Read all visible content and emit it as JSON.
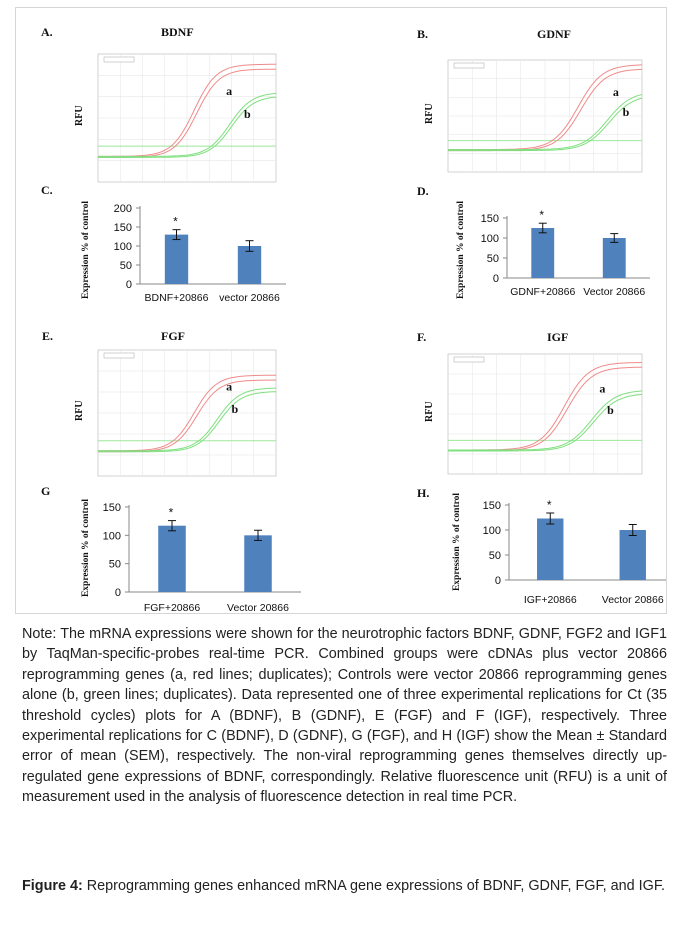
{
  "panels_pcr": [
    {
      "letter": "A.",
      "title": "BDNF",
      "ylabel": "RFU",
      "curve_a": "a",
      "curve_b": "b"
    },
    {
      "letter": "B.",
      "title": "GDNF",
      "ylabel": "RFU",
      "curve_a": "a",
      "curve_b": "b"
    },
    {
      "letter": "E.",
      "title": "FGF",
      "ylabel": "RFU",
      "curve_a": "a",
      "curve_b": "b"
    },
    {
      "letter": "F.",
      "title": "IGF",
      "ylabel": "RFU",
      "curve_a": "a",
      "curve_b": "b"
    }
  ],
  "chart_data": [
    {
      "type": "bar",
      "panel": "C.",
      "categories": [
        "BDNF+20866",
        "vector 20866"
      ],
      "values": [
        130,
        100
      ],
      "errors": [
        13,
        14
      ],
      "ylabel": "Expression % of control",
      "ylim": [
        0,
        200
      ],
      "yticks": [
        0,
        50,
        100,
        150,
        200
      ],
      "annotation": "*",
      "bar_color": "#4f81bd"
    },
    {
      "type": "bar",
      "panel": "D.",
      "categories": [
        "GDNF+20866",
        "Vector 20866"
      ],
      "values": [
        125,
        100
      ],
      "errors": [
        12,
        11
      ],
      "ylabel": "Expression % of control",
      "ylim": [
        0,
        150
      ],
      "yticks": [
        0,
        50,
        100,
        150
      ],
      "annotation": "*",
      "bar_color": "#4f81bd"
    },
    {
      "type": "bar",
      "panel": "G",
      "categories": [
        "FGF+20866",
        "Vector 20866"
      ],
      "values": [
        117,
        100
      ],
      "errors": [
        9,
        9
      ],
      "ylabel": "Expression % of control",
      "ylim": [
        0,
        150
      ],
      "yticks": [
        0,
        50,
        100,
        150
      ],
      "annotation": "*",
      "bar_color": "#4f81bd"
    },
    {
      "type": "bar",
      "panel": "H.",
      "categories": [
        "IGF+20866",
        "Vector 20866"
      ],
      "values": [
        123,
        100
      ],
      "errors": [
        11,
        11
      ],
      "ylabel": "Expression % of control",
      "ylim": [
        0,
        150
      ],
      "yticks": [
        0,
        50,
        100,
        150
      ],
      "annotation": "*",
      "bar_color": "#4f81bd"
    }
  ],
  "note": "Note: The mRNA expressions were shown for the neurotrophic factors BDNF, GDNF, FGF2 and IGF1 by TaqMan-specific-probes real-time PCR. Combined groups were cDNAs plus vector 20866 reprogramming genes (a, red lines; duplicates); Controls were vector 20866 reprogramming genes alone (b, green lines; duplicates). Data represented one of three experimental replications for Ct (35 threshold cycles) plots for A (BDNF), B (GDNF), E (FGF) and F (IGF), respectively. Three experimental replications for C (BDNF), D (GDNF), G (FGF), and H (IGF) show the Mean ± Standard error of mean (SEM), respectively. The non-viral reprogramming genes themselves directly up-regulated gene expressions of BDNF, correspondingly. Relative fluorescence unit (RFU) is a unit of measurement used in the analysis of fluorescence detection in real time PCR.",
  "caption": {
    "label": "Figure 4:",
    "text": " Reprogramming genes enhanced mRNA gene expressions of BDNF, GDNF, FGF, and IGF."
  },
  "colors": {
    "red_curve": "#f08a8a",
    "green_curve": "#7ee07e",
    "threshold": "#9be89b"
  }
}
